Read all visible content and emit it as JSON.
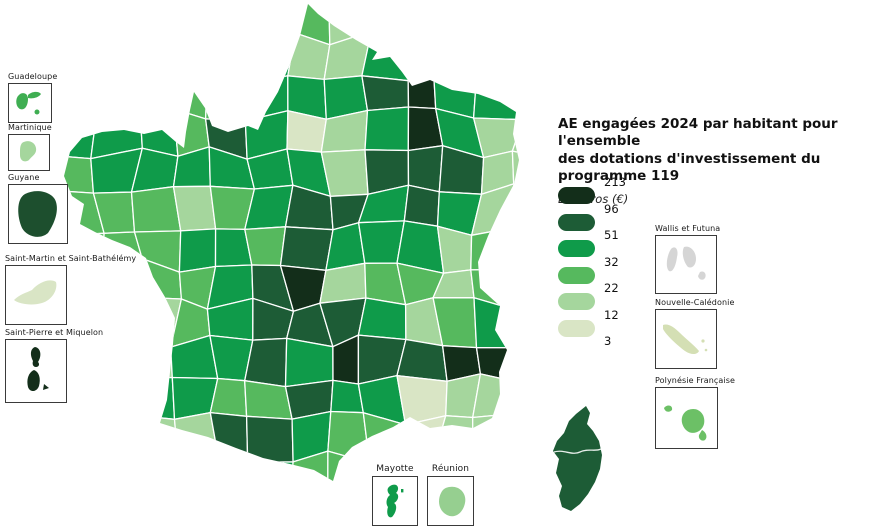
{
  "title": {
    "line1": "AE engagées 2024 par habitant pour l'ensemble",
    "line2": "des dotations d'investissement du programme 119",
    "subtitle": "En euros (€)"
  },
  "legend": {
    "values": [
      "213",
      "96",
      "51",
      "32",
      "22",
      "12",
      "3"
    ],
    "colors": [
      "#132e1a",
      "#1d5c36",
      "#0f9b4a",
      "#56b95e",
      "#a5d69d",
      "#d9e5c5"
    ]
  },
  "insets": {
    "left": [
      {
        "label": "Guadeloupe",
        "color": "#3fae52"
      },
      {
        "label": "Martinique",
        "color": "#a5d69d"
      },
      {
        "label": "Guyane",
        "color": "#1d4f2e"
      },
      {
        "label": "Saint-Martin et Saint-Bathélémy",
        "color": "#d9e5c5"
      },
      {
        "label": "Saint-Pierre et Miquelon",
        "color": "#132e1a"
      }
    ],
    "right": [
      {
        "label": "Wallis et Futuna",
        "color": "#d5d5d5"
      },
      {
        "label": "Nouvelle-Calédonie",
        "color": "#d4dfb4"
      },
      {
        "label": "Polynésie Française",
        "color": "#6cc066"
      }
    ],
    "bottom": [
      {
        "label": "Mayotte",
        "color": "#0f9b4a"
      },
      {
        "label": "Réunion",
        "color": "#96cf90"
      }
    ]
  },
  "map": {
    "palette": [
      "#132e1a",
      "#1d5c36",
      "#0f9b4a",
      "#56b95e",
      "#a5d69d",
      "#d9e5c5"
    ],
    "corsica_color": "#1d5c36",
    "grid": [
      [
        3,
        3,
        3,
        3,
        3,
        2,
        3,
        4,
        2,
        2,
        2,
        3,
        3
      ],
      [
        2,
        2,
        3,
        3,
        3,
        2,
        4,
        4,
        2,
        1,
        2,
        3,
        3
      ],
      [
        2,
        2,
        3,
        3,
        3,
        2,
        2,
        2,
        1,
        0,
        2,
        2,
        4
      ],
      [
        2,
        2,
        2,
        3,
        1,
        2,
        5,
        4,
        2,
        0,
        2,
        4,
        4
      ],
      [
        3,
        2,
        2,
        2,
        2,
        2,
        2,
        4,
        1,
        1,
        1,
        4,
        4
      ],
      [
        3,
        3,
        3,
        4,
        3,
        2,
        1,
        1,
        2,
        1,
        2,
        4,
        3
      ],
      [
        3,
        3,
        3,
        2,
        2,
        3,
        1,
        2,
        2,
        2,
        4,
        3,
        3
      ],
      [
        3,
        3,
        3,
        3,
        2,
        1,
        0,
        4,
        3,
        3,
        4,
        3,
        2
      ],
      [
        3,
        3,
        4,
        3,
        2,
        1,
        1,
        1,
        2,
        4,
        3,
        2,
        2
      ],
      [
        4,
        4,
        4,
        2,
        2,
        1,
        2,
        0,
        1,
        1,
        0,
        0,
        2
      ],
      [
        3,
        3,
        2,
        2,
        3,
        3,
        1,
        2,
        2,
        5,
        4,
        4,
        4
      ],
      [
        4,
        4,
        4,
        4,
        1,
        1,
        2,
        3,
        3,
        5,
        4,
        4,
        4
      ],
      [
        3,
        3,
        3,
        3,
        2,
        2,
        3,
        3,
        3,
        4,
        4,
        4,
        4
      ]
    ]
  }
}
